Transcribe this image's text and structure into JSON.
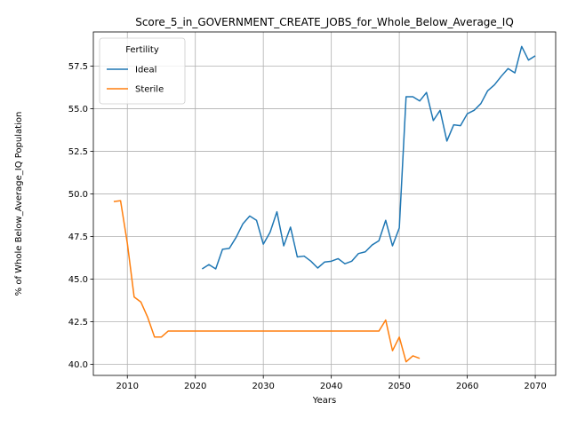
{
  "chart_data": {
    "type": "line",
    "title": "Score_5_in_GOVERNMENT_CREATE_JOBS_for_Whole_Below_Average_IQ",
    "xlabel": "Years",
    "ylabel": "% of Whole Below_Average_IQ Population",
    "xlim": [
      2005,
      2073
    ],
    "ylim": [
      39.35,
      59.5
    ],
    "xticks": [
      2010,
      2020,
      2030,
      2040,
      2050,
      2060,
      2070
    ],
    "yticks": [
      40.0,
      42.5,
      45.0,
      47.5,
      50.0,
      52.5,
      55.0,
      57.5
    ],
    "grid": true,
    "legend": {
      "title": "Fertility",
      "placement": "top-left"
    },
    "series": [
      {
        "name": "Ideal",
        "color": "#1f77b4",
        "x": [
          2021,
          2022,
          2023,
          2024,
          2025,
          2026,
          2027,
          2028,
          2029,
          2030,
          2031,
          2032,
          2033,
          2034,
          2035,
          2036,
          2037,
          2038,
          2039,
          2040,
          2041,
          2042,
          2043,
          2044,
          2045,
          2046,
          2047,
          2048,
          2049,
          2050,
          2051,
          2052,
          2053,
          2054,
          2055,
          2056,
          2057,
          2058,
          2059,
          2060,
          2061,
          2062,
          2063,
          2064,
          2065,
          2066,
          2067,
          2068,
          2069,
          2070
        ],
        "y": [
          45.6,
          45.85,
          45.6,
          46.75,
          46.8,
          47.45,
          48.25,
          48.7,
          48.45,
          47.05,
          47.75,
          48.95,
          46.95,
          48.05,
          46.3,
          46.35,
          46.05,
          45.65,
          46.0,
          46.05,
          46.2,
          45.9,
          46.05,
          46.5,
          46.6,
          47.0,
          47.25,
          48.45,
          46.95,
          48.0,
          55.7,
          55.7,
          55.45,
          55.95,
          54.3,
          54.9,
          53.1,
          54.05,
          54.0,
          54.7,
          54.9,
          55.3,
          56.05,
          56.4,
          56.9,
          57.35,
          57.1,
          58.65,
          57.85,
          58.1
        ]
      },
      {
        "name": "Sterile",
        "color": "#ff7f0e",
        "x": [
          2008,
          2009,
          2010,
          2011,
          2012,
          2013,
          2014,
          2015,
          2016,
          2017,
          2018,
          2019,
          2020,
          2021,
          2022,
          2023,
          2024,
          2025,
          2026,
          2027,
          2028,
          2029,
          2030,
          2031,
          2032,
          2033,
          2034,
          2035,
          2036,
          2037,
          2038,
          2039,
          2040,
          2041,
          2042,
          2043,
          2044,
          2045,
          2046,
          2047,
          2048,
          2049,
          2050,
          2051,
          2052,
          2053
        ],
        "y": [
          49.55,
          49.6,
          47.1,
          43.95,
          43.65,
          42.75,
          41.6,
          41.6,
          41.95,
          41.95,
          41.95,
          41.95,
          41.95,
          41.95,
          41.95,
          41.95,
          41.95,
          41.95,
          41.95,
          41.95,
          41.95,
          41.95,
          41.95,
          41.95,
          41.95,
          41.95,
          41.95,
          41.95,
          41.95,
          41.95,
          41.95,
          41.95,
          41.95,
          41.95,
          41.95,
          41.95,
          41.95,
          41.95,
          41.95,
          41.95,
          42.6,
          40.8,
          41.6,
          40.15,
          40.5,
          40.35
        ]
      }
    ]
  }
}
